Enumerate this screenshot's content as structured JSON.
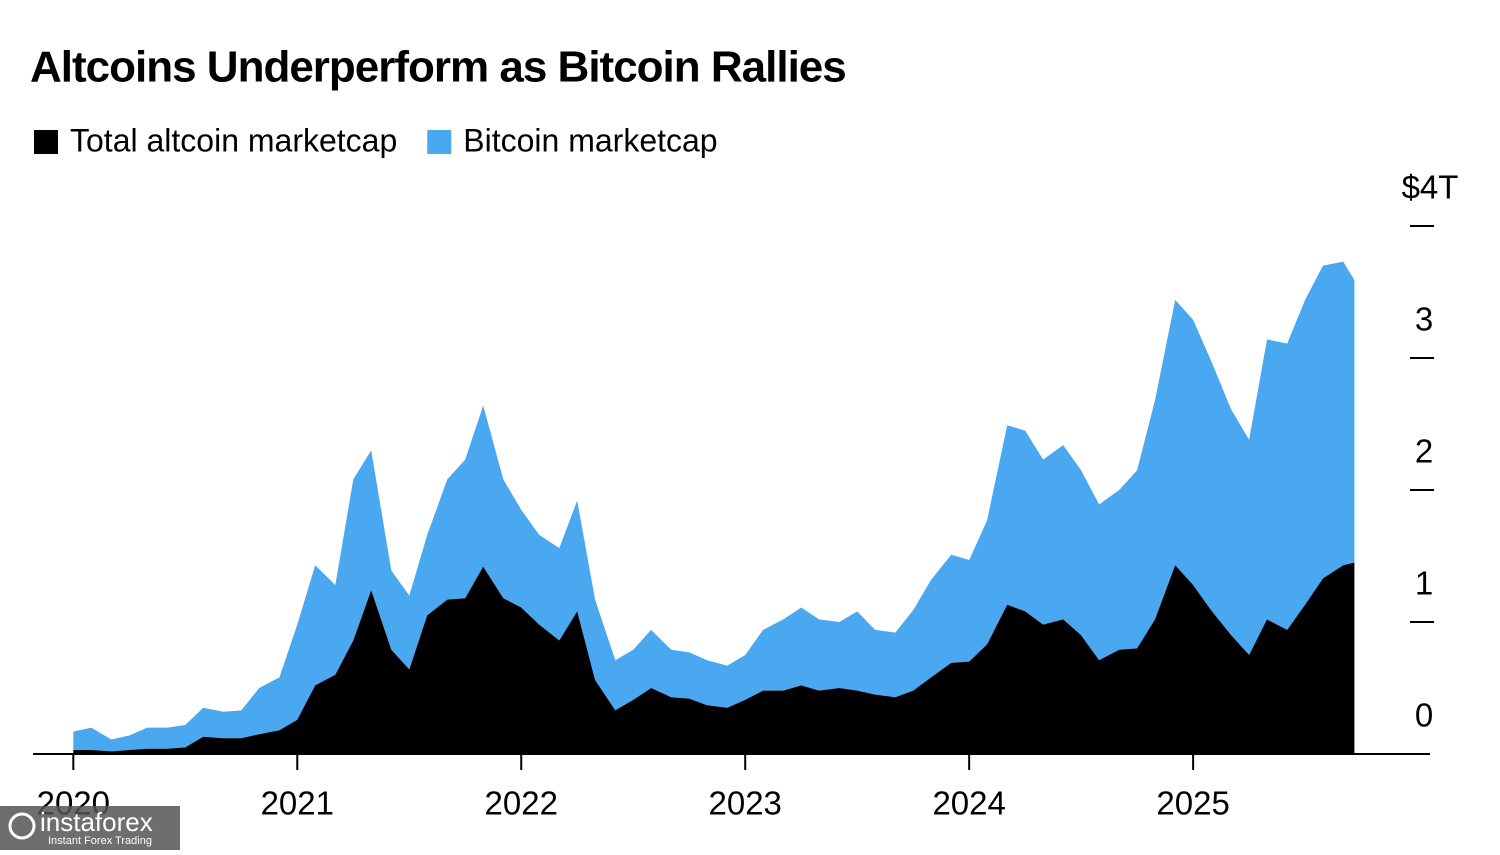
{
  "chart_data": {
    "type": "stacked-area",
    "title": "Altcoins Underperform as Bitcoin Rallies",
    "x": [
      2020,
      2020.08,
      2020.17,
      2020.25,
      2020.33,
      2020.42,
      2020.5,
      2020.58,
      2020.67,
      2020.75,
      2020.83,
      2020.92,
      2021,
      2021.08,
      2021.17,
      2021.25,
      2021.33,
      2021.42,
      2021.5,
      2021.58,
      2021.67,
      2021.75,
      2021.83,
      2021.92,
      2022,
      2022.08,
      2022.17,
      2022.25,
      2022.33,
      2022.42,
      2022.5,
      2022.58,
      2022.67,
      2022.75,
      2022.83,
      2022.92,
      2023,
      2023.08,
      2023.17,
      2023.25,
      2023.33,
      2023.42,
      2023.5,
      2023.58,
      2023.67,
      2023.75,
      2023.83,
      2023.92,
      2024,
      2024.08,
      2024.17,
      2024.25,
      2024.33,
      2024.42,
      2024.5,
      2024.58,
      2024.67,
      2024.75,
      2024.83,
      2024.92,
      2025,
      2025.08,
      2025.17,
      2025.25,
      2025.33,
      2025.42,
      2025.5,
      2025.58,
      2025.67,
      2025.72
    ],
    "series": [
      {
        "name": "Total altcoin marketcap",
        "color": "#000000",
        "values": [
          0.03,
          0.03,
          0.02,
          0.03,
          0.04,
          0.04,
          0.05,
          0.13,
          0.12,
          0.12,
          0.15,
          0.18,
          0.26,
          0.52,
          0.6,
          0.86,
          1.24,
          0.79,
          0.64,
          1.05,
          1.17,
          1.18,
          1.42,
          1.18,
          1.11,
          0.98,
          0.86,
          1.08,
          0.56,
          0.33,
          0.41,
          0.5,
          0.43,
          0.42,
          0.37,
          0.35,
          0.41,
          0.48,
          0.48,
          0.52,
          0.48,
          0.5,
          0.48,
          0.45,
          0.43,
          0.48,
          0.58,
          0.69,
          0.7,
          0.83,
          1.13,
          1.08,
          0.98,
          1.02,
          0.9,
          0.71,
          0.79,
          0.8,
          1.02,
          1.43,
          1.28,
          1.09,
          0.9,
          0.75,
          1.02,
          0.94,
          1.13,
          1.33,
          1.43,
          1.45
        ]
      },
      {
        "name": "Bitcoin marketcap",
        "color": "#4aa8f0",
        "values": [
          0.14,
          0.17,
          0.09,
          0.11,
          0.16,
          0.16,
          0.17,
          0.22,
          0.2,
          0.21,
          0.35,
          0.4,
          0.72,
          0.91,
          0.68,
          1.22,
          1.06,
          0.6,
          0.56,
          0.61,
          0.91,
          1.05,
          1.22,
          0.9,
          0.74,
          0.68,
          0.7,
          0.84,
          0.61,
          0.38,
          0.38,
          0.44,
          0.36,
          0.35,
          0.34,
          0.32,
          0.34,
          0.46,
          0.54,
          0.59,
          0.54,
          0.5,
          0.6,
          0.49,
          0.49,
          0.61,
          0.74,
          0.82,
          0.77,
          0.94,
          1.36,
          1.37,
          1.25,
          1.32,
          1.25,
          1.18,
          1.21,
          1.35,
          1.66,
          2.01,
          2.01,
          1.89,
          1.71,
          1.63,
          2.12,
          2.17,
          2.31,
          2.37,
          2.3,
          2.14
        ]
      }
    ],
    "xlim": [
      2019.82,
      2026.08
    ],
    "xticks": [
      2020,
      2021,
      2022,
      2023,
      2024,
      2025
    ],
    "ylim": [
      0,
      4
    ],
    "yticks": [
      0,
      1,
      2,
      3,
      {
        "value": 4,
        "label": "$4T"
      }
    ],
    "grid": false
  },
  "watermark": {
    "brand": "instaforex",
    "tagline": "Instant Forex Trading"
  }
}
